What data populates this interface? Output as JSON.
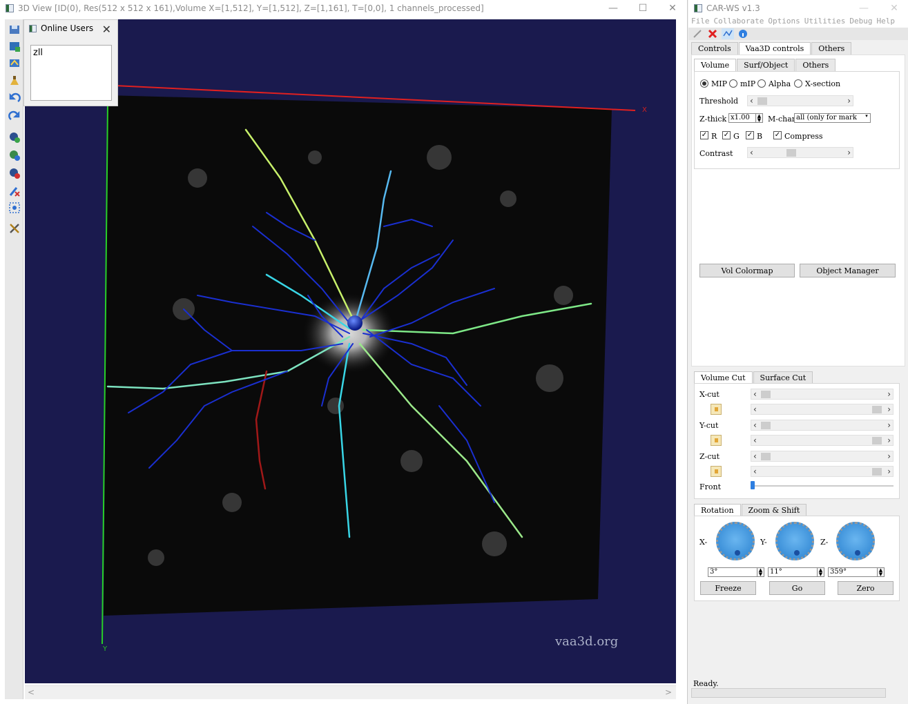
{
  "left_window": {
    "title": "3D View [ID(0), Res(512 x 512 x 161),Volume X=[1,512], Y=[1,512], Z=[1,161], T=[0,0], 1 channels_processed]",
    "min_icon": "—",
    "max_icon": "☐",
    "close_icon": "✕",
    "watermark": "vaa3d.org",
    "axis_x": "X",
    "axis_y": "Y",
    "scroll_left": "<",
    "scroll_right": ">"
  },
  "toolbar_icons": [
    "save-icon",
    "save-as-icon",
    "import-icon",
    "clean-icon",
    "undo-icon",
    "redo-icon",
    "zoom-in-icon",
    "add-user-icon",
    "remove-icon",
    "pen-delete-icon",
    "select-icon",
    "tools-icon"
  ],
  "online_users": {
    "title": "Online Users",
    "close": "✕",
    "users": [
      "zll"
    ]
  },
  "right_window": {
    "title": "CAR-WS v1.3",
    "menu": [
      "File",
      "Collaborate",
      "Options",
      "Utilities",
      "Debug",
      "Help"
    ],
    "main_tabs": [
      "Controls",
      "Vaa3D controls",
      "Others"
    ],
    "sub_tabs": [
      "Volume",
      "Surf/Object",
      "Others"
    ],
    "render_modes": [
      "MIP",
      "mIP",
      "Alpha",
      "X-section"
    ],
    "threshold_label": "Threshold",
    "zthick_label": "Z-thick",
    "zthick_value": "x1.00",
    "mchan_label": "M-chan",
    "mchan_value": "all (only for mark",
    "channels": [
      "R",
      "G",
      "B",
      "Compress"
    ],
    "contrast_label": "Contrast",
    "vol_colormap": "Vol Colormap",
    "object_manager": "Object Manager",
    "cut_tabs": [
      "Volume Cut",
      "Surface Cut"
    ],
    "xcut": "X-cut",
    "ycut": "Y-cut",
    "zcut": "Z-cut",
    "front": "Front",
    "rot_tabs": [
      "Rotation",
      "Zoom & Shift"
    ],
    "rot_labels": [
      "X-",
      "Y-",
      "Z-"
    ],
    "rot_values": [
      "3°",
      "11°",
      "359°"
    ],
    "freeze": "Freeze",
    "go": "Go",
    "zero": "Zero",
    "status": "Ready."
  }
}
